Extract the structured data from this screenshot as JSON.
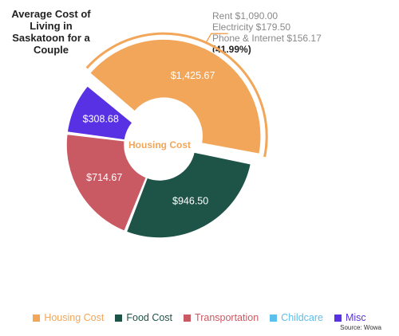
{
  "title_lines": [
    "Average Cost of",
    "Living in",
    "Saskatoon for a",
    "Couple"
  ],
  "callout": {
    "lines": [
      "Rent $1,090.00",
      "Electricity $179.50",
      "Phone & Internet $156.17"
    ],
    "percent": "(41.99%)"
  },
  "center_label": "Housing Cost",
  "source": "Source: Wowa",
  "chart_data": {
    "type": "pie",
    "variant": "donut",
    "title": "Average Cost of Living in Saskatoon for a Couple",
    "highlighted": "Housing Cost",
    "series": [
      {
        "name": "Housing Cost",
        "value": 1425.67,
        "label": "$1,425.67",
        "color": "#f2a65a"
      },
      {
        "name": "Food Cost",
        "value": 946.5,
        "label": "$946.50",
        "color": "#1e5448"
      },
      {
        "name": "Transportation",
        "value": 714.67,
        "label": "$714.67",
        "color": "#c95a64"
      },
      {
        "name": "Childcare",
        "value": 0,
        "label": "",
        "color": "#5bc0eb"
      },
      {
        "name": "Misc",
        "value": 308.68,
        "label": "$308.68",
        "color": "#5731e3"
      }
    ],
    "legend_position": "bottom"
  }
}
